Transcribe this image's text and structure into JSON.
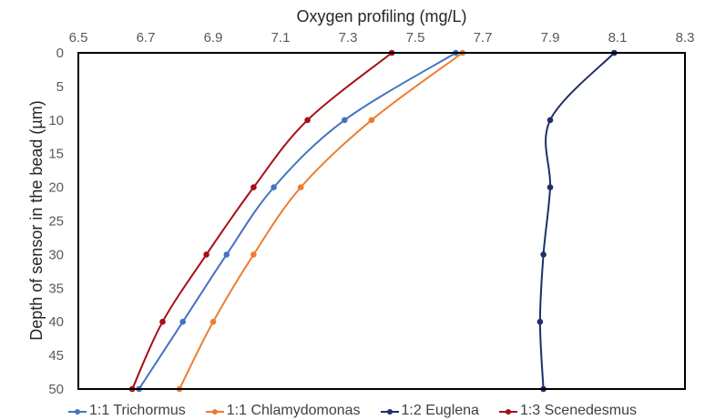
{
  "chart_data": {
    "type": "line",
    "title": "",
    "xlabel": "Oxygen profiling (mg/L)",
    "ylabel": "Depth of sensor in the bead (µm)",
    "xlim": [
      6.5,
      8.3
    ],
    "ylim": [
      0,
      50
    ],
    "y_inverted": true,
    "x_axis_position": "top",
    "x_ticks": [
      "6.5",
      "6.7",
      "6.9",
      "7.1",
      "7.3",
      "7.5",
      "7.7",
      "7.9",
      "8.1",
      "8.3"
    ],
    "y_ticks": [
      "0",
      "5",
      "10",
      "15",
      "20",
      "25",
      "30",
      "35",
      "40",
      "45",
      "50"
    ],
    "grid": false,
    "legend_position": "bottom",
    "y": [
      0,
      10,
      20,
      30,
      40,
      50
    ],
    "series": [
      {
        "name": "1:1 Trichormus",
        "color": "#4472C4",
        "values": [
          7.62,
          7.29,
          7.08,
          6.94,
          6.81,
          6.68
        ]
      },
      {
        "name": "1:1 Chlamydomonas",
        "color": "#ED7D31",
        "values": [
          7.64,
          7.37,
          7.16,
          7.02,
          6.9,
          6.8
        ]
      },
      {
        "name": "1:2 Euglena",
        "color": "#1F2F6B",
        "values": [
          8.09,
          7.9,
          7.9,
          7.88,
          7.87,
          7.88
        ]
      },
      {
        "name": "1:3 Scenedesmus",
        "color": "#A50F15",
        "values": [
          7.43,
          7.18,
          7.02,
          6.88,
          6.75,
          6.66
        ]
      }
    ]
  }
}
